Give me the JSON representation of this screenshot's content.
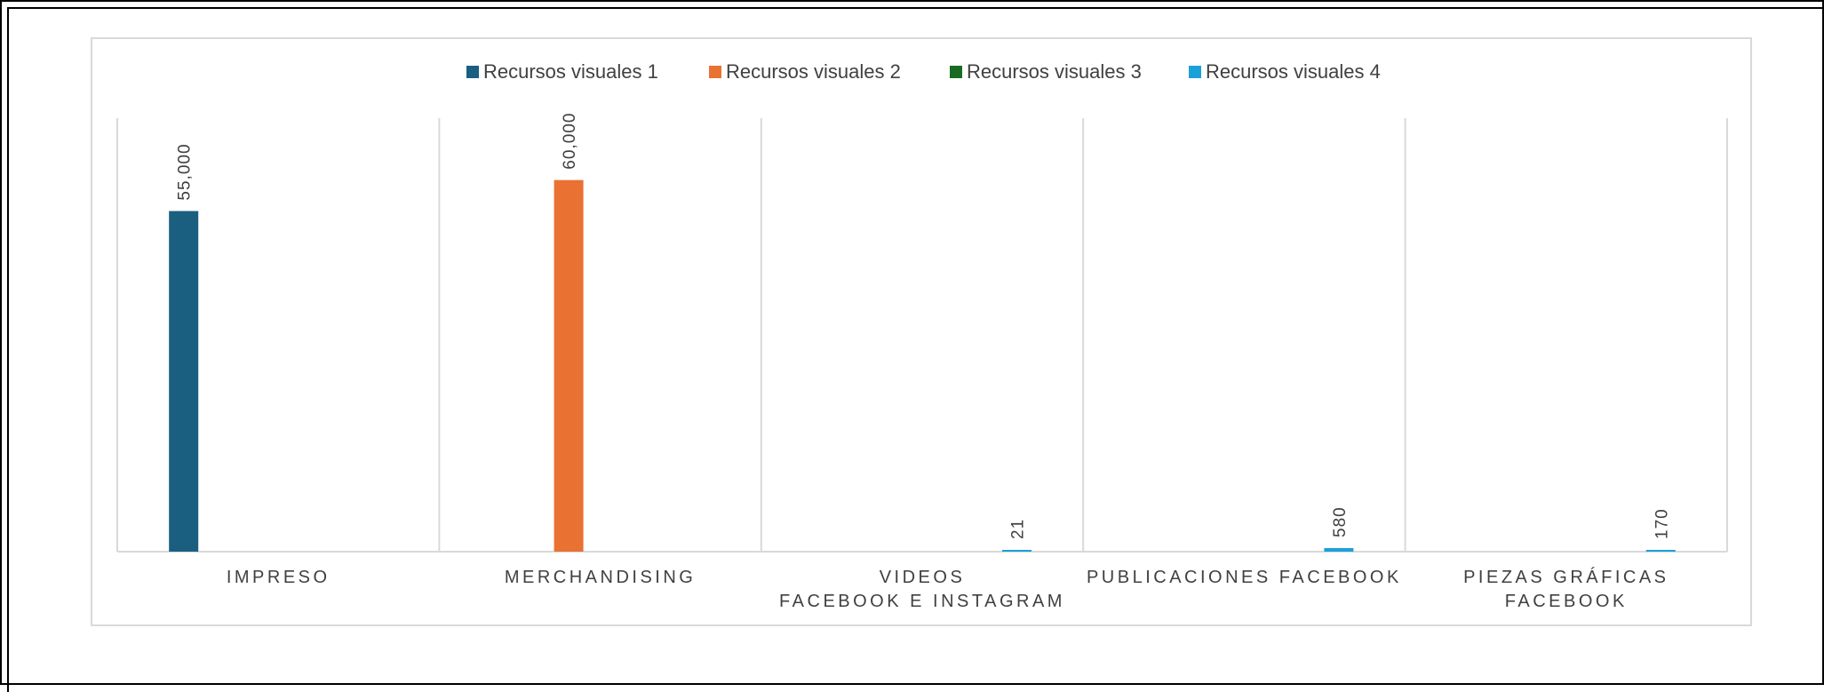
{
  "chart_data": {
    "type": "bar",
    "title": "",
    "xlabel": "",
    "ylabel": "",
    "ylim": [
      0,
      70000
    ],
    "grid": "vertical category separators",
    "legend_position": "top",
    "categories": [
      [
        "IMPRESO"
      ],
      [
        "MERCHANDISING"
      ],
      [
        "VIDEOS",
        "FACEBOOK E INSTAGRAM"
      ],
      [
        "PUBLICACIONES FACEBOOK"
      ],
      [
        "PIEZAS GRÁFICAS",
        "FACEBOOK"
      ]
    ],
    "series": [
      {
        "name": "Recursos visuales 1",
        "color": "#1a5e80",
        "values": [
          55000,
          null,
          null,
          null,
          null
        ],
        "labels": [
          "55,000",
          "",
          "",
          "",
          ""
        ]
      },
      {
        "name": "Recursos visuales 2",
        "color": "#e97132",
        "values": [
          null,
          60000,
          null,
          null,
          null
        ],
        "labels": [
          "",
          "60,000",
          "",
          "",
          ""
        ]
      },
      {
        "name": "Recursos visuales 3",
        "color": "#196b24",
        "values": [
          null,
          null,
          null,
          null,
          null
        ],
        "labels": [
          "",
          "",
          "",
          "",
          ""
        ]
      },
      {
        "name": "Recursos visuales 4",
        "color": "#1ca0d9",
        "values": [
          null,
          null,
          21,
          580,
          170
        ],
        "labels": [
          "",
          "",
          "21",
          "580",
          "170"
        ]
      }
    ]
  }
}
